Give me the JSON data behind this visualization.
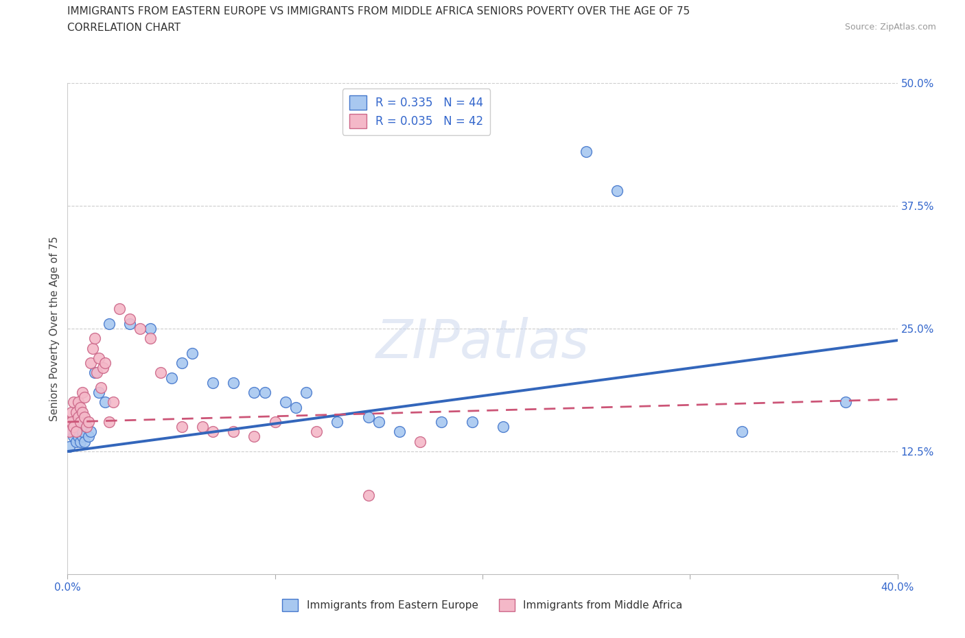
{
  "title": "IMMIGRANTS FROM EASTERN EUROPE VS IMMIGRANTS FROM MIDDLE AFRICA SENIORS POVERTY OVER THE AGE OF 75",
  "subtitle": "CORRELATION CHART",
  "source": "Source: ZipAtlas.com",
  "ylabel": "Seniors Poverty Over the Age of 75",
  "watermark": "ZIPatlas",
  "x_min": 0.0,
  "x_max": 0.4,
  "y_min": 0.0,
  "y_max": 0.5,
  "x_ticks": [
    0.0,
    0.1,
    0.2,
    0.3,
    0.4
  ],
  "y_ticks": [
    0.0,
    0.125,
    0.25,
    0.375,
    0.5
  ],
  "blue_R": 0.335,
  "blue_N": 44,
  "pink_R": 0.035,
  "pink_N": 42,
  "legend_label_blue": "Immigrants from Eastern Europe",
  "legend_label_pink": "Immigrants from Middle Africa",
  "blue_color": "#a8c8f0",
  "pink_color": "#f4b8c8",
  "blue_edge_color": "#4477cc",
  "pink_edge_color": "#cc6688",
  "blue_line_color": "#3366bb",
  "pink_line_color": "#cc5577",
  "blue_x": [
    0.001,
    0.002,
    0.002,
    0.003,
    0.003,
    0.004,
    0.004,
    0.005,
    0.005,
    0.006,
    0.006,
    0.007,
    0.007,
    0.008,
    0.009,
    0.01,
    0.011,
    0.013,
    0.015,
    0.018,
    0.02,
    0.03,
    0.04,
    0.05,
    0.055,
    0.06,
    0.07,
    0.08,
    0.09,
    0.095,
    0.105,
    0.11,
    0.115,
    0.13,
    0.145,
    0.15,
    0.16,
    0.18,
    0.195,
    0.21,
    0.25,
    0.265,
    0.325,
    0.375
  ],
  "blue_y": [
    0.13,
    0.155,
    0.145,
    0.14,
    0.15,
    0.135,
    0.145,
    0.155,
    0.14,
    0.135,
    0.15,
    0.14,
    0.145,
    0.135,
    0.15,
    0.14,
    0.145,
    0.205,
    0.185,
    0.175,
    0.255,
    0.255,
    0.25,
    0.2,
    0.215,
    0.225,
    0.195,
    0.195,
    0.185,
    0.185,
    0.175,
    0.17,
    0.185,
    0.155,
    0.16,
    0.155,
    0.145,
    0.155,
    0.155,
    0.15,
    0.43,
    0.39,
    0.145,
    0.175
  ],
  "pink_x": [
    0.001,
    0.001,
    0.002,
    0.002,
    0.003,
    0.003,
    0.004,
    0.004,
    0.005,
    0.005,
    0.006,
    0.006,
    0.007,
    0.007,
    0.008,
    0.008,
    0.009,
    0.01,
    0.011,
    0.012,
    0.013,
    0.014,
    0.015,
    0.016,
    0.017,
    0.018,
    0.02,
    0.022,
    0.025,
    0.03,
    0.035,
    0.04,
    0.045,
    0.055,
    0.065,
    0.07,
    0.08,
    0.09,
    0.1,
    0.12,
    0.145,
    0.17
  ],
  "pink_y": [
    0.155,
    0.145,
    0.165,
    0.155,
    0.175,
    0.15,
    0.165,
    0.145,
    0.175,
    0.16,
    0.17,
    0.155,
    0.185,
    0.165,
    0.18,
    0.16,
    0.15,
    0.155,
    0.215,
    0.23,
    0.24,
    0.205,
    0.22,
    0.19,
    0.21,
    0.215,
    0.155,
    0.175,
    0.27,
    0.26,
    0.25,
    0.24,
    0.205,
    0.15,
    0.15,
    0.145,
    0.145,
    0.14,
    0.155,
    0.145,
    0.08,
    0.135
  ],
  "blue_trend_x0": 0.0,
  "blue_trend_y0": 0.125,
  "blue_trend_x1": 0.4,
  "blue_trend_y1": 0.238,
  "pink_trend_x0": 0.0,
  "pink_trend_y0": 0.155,
  "pink_trend_x1": 0.4,
  "pink_trend_y1": 0.178
}
